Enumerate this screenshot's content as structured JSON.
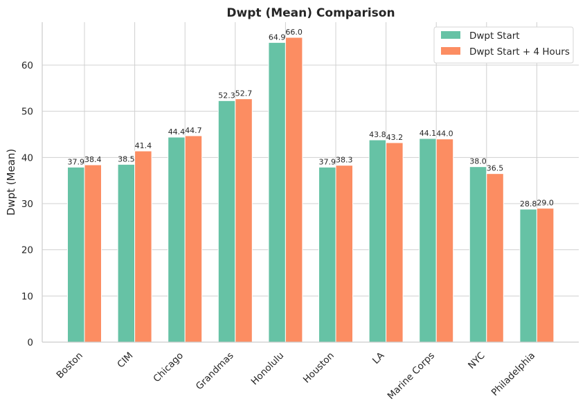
{
  "chart_data": {
    "type": "bar",
    "title": "Dwpt (Mean) Comparison",
    "xlabel": "",
    "ylabel": "Dwpt (Mean)",
    "ylim": [
      0,
      69.3
    ],
    "yticks": [
      0,
      10,
      20,
      30,
      40,
      50,
      60
    ],
    "grid": true,
    "legend_position": "top-right",
    "categories": [
      "Boston",
      "CIM",
      "Chicago",
      "Grandmas",
      "Honolulu",
      "Houston",
      "LA",
      "Marine Corps",
      "NYC",
      "Philadelphia"
    ],
    "series": [
      {
        "name": "Dwpt Start",
        "color": "#66c2a5",
        "values": [
          37.9,
          38.5,
          44.4,
          52.3,
          64.9,
          37.9,
          43.8,
          44.1,
          38.0,
          28.8
        ]
      },
      {
        "name": "Dwpt Start + 4 Hours",
        "color": "#fc8d62",
        "values": [
          38.4,
          41.4,
          44.7,
          52.7,
          66.0,
          38.3,
          43.2,
          44.0,
          36.5,
          29.0
        ]
      }
    ]
  }
}
